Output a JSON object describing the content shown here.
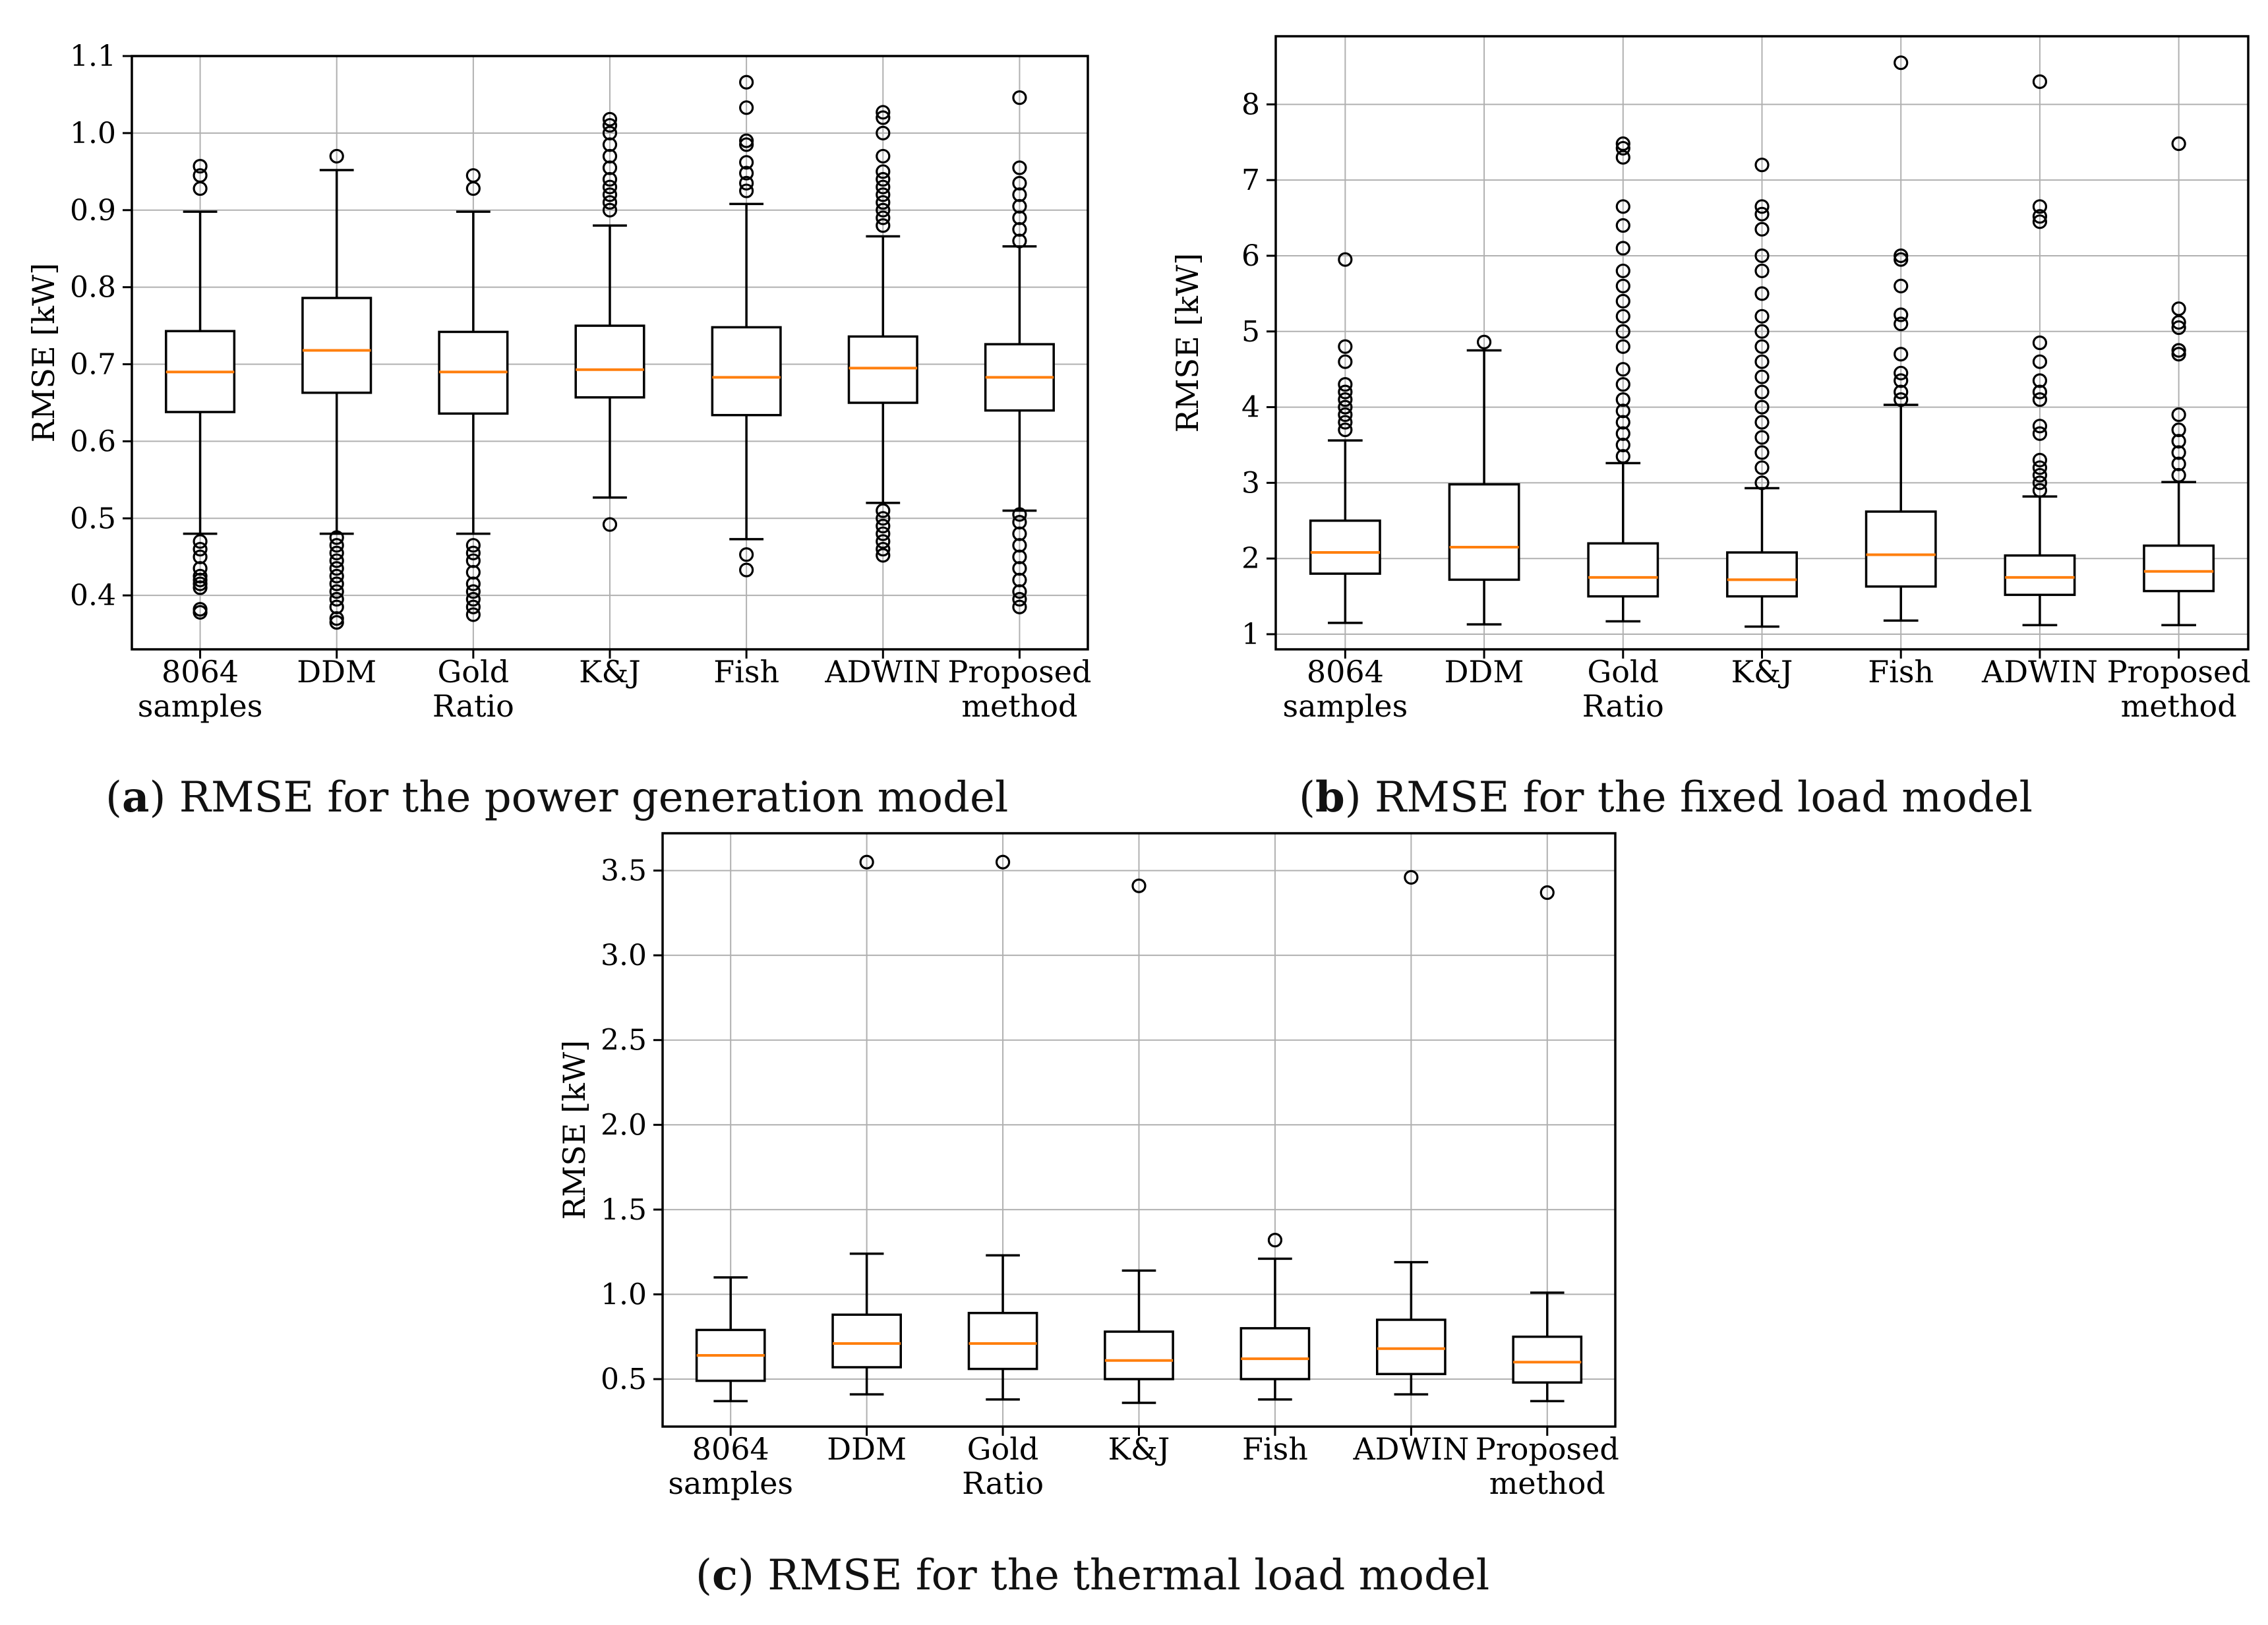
{
  "chart_data": [
    {
      "type": "box",
      "id": "a",
      "caption_letter": "a",
      "caption_text": "RMSE for the power generation model",
      "ylabel": "RMSE [kW]",
      "ylim": [
        0.33,
        1.1
      ],
      "yticks": [
        0.4,
        0.5,
        0.6,
        0.7,
        0.8,
        0.9,
        1.0,
        1.1
      ],
      "ytick_labels": [
        "0.4",
        "0.5",
        "0.6",
        "0.7",
        "0.8",
        "0.9",
        "1.0",
        "1.1"
      ],
      "categories": [
        [
          "8064",
          "samples"
        ],
        [
          "DDM"
        ],
        [
          "Gold",
          "Ratio"
        ],
        [
          "K&J"
        ],
        [
          "Fish"
        ],
        [
          "ADWIN"
        ],
        [
          "Proposed",
          "method"
        ]
      ],
      "boxes": [
        {
          "whislo": 0.48,
          "q1": 0.638,
          "med": 0.69,
          "q3": 0.743,
          "whishi": 0.898,
          "fliers": [
            0.928,
            0.945,
            0.957,
            0.378,
            0.382,
            0.41,
            0.415,
            0.42,
            0.425,
            0.435,
            0.45,
            0.46,
            0.47
          ]
        },
        {
          "whislo": 0.48,
          "q1": 0.663,
          "med": 0.718,
          "q3": 0.786,
          "whishi": 0.952,
          "fliers": [
            0.97,
            0.365,
            0.37,
            0.385,
            0.395,
            0.405,
            0.415,
            0.425,
            0.435,
            0.445,
            0.455,
            0.465,
            0.475
          ]
        },
        {
          "whislo": 0.48,
          "q1": 0.636,
          "med": 0.69,
          "q3": 0.742,
          "whishi": 0.898,
          "fliers": [
            0.928,
            0.945,
            0.375,
            0.385,
            0.395,
            0.405,
            0.415,
            0.43,
            0.445,
            0.455,
            0.465
          ]
        },
        {
          "whislo": 0.527,
          "q1": 0.657,
          "med": 0.693,
          "q3": 0.75,
          "whishi": 0.88,
          "fliers": [
            0.492,
            0.9,
            0.91,
            0.92,
            0.93,
            0.94,
            0.955,
            0.97,
            0.985,
            1.0,
            1.01,
            1.018
          ]
        },
        {
          "whislo": 0.473,
          "q1": 0.634,
          "med": 0.683,
          "q3": 0.748,
          "whishi": 0.908,
          "fliers": [
            0.433,
            0.453,
            0.925,
            0.935,
            0.948,
            0.962,
            0.985,
            0.99,
            1.033,
            1.066
          ]
        },
        {
          "whislo": 0.52,
          "q1": 0.65,
          "med": 0.695,
          "q3": 0.736,
          "whishi": 0.866,
          "fliers": [
            0.452,
            0.46,
            0.47,
            0.48,
            0.49,
            0.5,
            0.51,
            0.88,
            0.89,
            0.9,
            0.91,
            0.92,
            0.93,
            0.94,
            0.95,
            0.97,
            1.0,
            1.02,
            1.027
          ]
        },
        {
          "whislo": 0.51,
          "q1": 0.64,
          "med": 0.683,
          "q3": 0.726,
          "whishi": 0.853,
          "fliers": [
            0.385,
            0.395,
            0.405,
            0.42,
            0.435,
            0.45,
            0.465,
            0.48,
            0.495,
            0.505,
            0.86,
            0.875,
            0.89,
            0.905,
            0.92,
            0.935,
            0.955,
            1.046
          ]
        }
      ]
    },
    {
      "type": "box",
      "id": "b",
      "caption_letter": "b",
      "caption_text": "RMSE for the fixed load model",
      "ylabel": "RMSE [kW]",
      "ylim": [
        0.8,
        8.9
      ],
      "yticks": [
        1,
        2,
        3,
        4,
        5,
        6,
        7,
        8
      ],
      "ytick_labels": [
        "1",
        "2",
        "3",
        "4",
        "5",
        "6",
        "7",
        "8"
      ],
      "categories": [
        [
          "8064",
          "samples"
        ],
        [
          "DDM"
        ],
        [
          "Gold",
          "Ratio"
        ],
        [
          "K&J"
        ],
        [
          "Fish"
        ],
        [
          "ADWIN"
        ],
        [
          "Proposed",
          "method"
        ]
      ],
      "boxes": [
        {
          "whislo": 1.15,
          "q1": 1.8,
          "med": 2.08,
          "q3": 2.5,
          "whishi": 3.56,
          "fliers": [
            3.7,
            3.8,
            3.9,
            4.0,
            4.1,
            4.2,
            4.3,
            4.6,
            4.8,
            5.95
          ]
        },
        {
          "whislo": 1.13,
          "q1": 1.72,
          "med": 2.15,
          "q3": 2.98,
          "whishi": 4.75,
          "fliers": [
            4.86
          ]
        },
        {
          "whislo": 1.17,
          "q1": 1.5,
          "med": 1.75,
          "q3": 2.2,
          "whishi": 3.26,
          "fliers": [
            3.35,
            3.5,
            3.65,
            3.8,
            3.95,
            4.1,
            4.3,
            4.5,
            4.8,
            5.0,
            5.2,
            5.4,
            5.6,
            5.8,
            6.1,
            6.4,
            6.65,
            7.3,
            7.42,
            7.48
          ]
        },
        {
          "whislo": 1.1,
          "q1": 1.5,
          "med": 1.72,
          "q3": 2.08,
          "whishi": 2.93,
          "fliers": [
            3.0,
            3.2,
            3.4,
            3.6,
            3.8,
            4.0,
            4.2,
            4.4,
            4.6,
            4.8,
            5.0,
            5.2,
            5.5,
            5.8,
            6.0,
            6.35,
            6.55,
            6.65,
            7.2
          ]
        },
        {
          "whislo": 1.18,
          "q1": 1.63,
          "med": 2.05,
          "q3": 2.62,
          "whishi": 4.03,
          "fliers": [
            4.1,
            4.2,
            4.35,
            4.45,
            4.7,
            5.1,
            5.22,
            5.6,
            5.95,
            6.0,
            8.55
          ]
        },
        {
          "whislo": 1.12,
          "q1": 1.52,
          "med": 1.75,
          "q3": 2.04,
          "whishi": 2.82,
          "fliers": [
            2.9,
            3.0,
            3.1,
            3.2,
            3.3,
            3.65,
            3.75,
            4.1,
            4.2,
            4.35,
            4.6,
            4.85,
            6.45,
            6.52,
            6.65,
            8.3
          ]
        },
        {
          "whislo": 1.12,
          "q1": 1.57,
          "med": 1.83,
          "q3": 2.17,
          "whishi": 3.01,
          "fliers": [
            3.1,
            3.25,
            3.4,
            3.55,
            3.7,
            3.9,
            4.7,
            4.75,
            5.05,
            5.12,
            5.3,
            7.48
          ]
        }
      ]
    },
    {
      "type": "box",
      "id": "c",
      "caption_letter": "c",
      "caption_text": "RMSE for the thermal load model",
      "ylabel": "RMSE [kW]",
      "ylim": [
        0.22,
        3.72
      ],
      "yticks": [
        0.5,
        1.0,
        1.5,
        2.0,
        2.5,
        3.0,
        3.5
      ],
      "ytick_labels": [
        "0.5",
        "1.0",
        "1.5",
        "2.0",
        "2.5",
        "3.0",
        "3.5"
      ],
      "categories": [
        [
          "8064",
          "samples"
        ],
        [
          "DDM"
        ],
        [
          "Gold",
          "Ratio"
        ],
        [
          "K&J"
        ],
        [
          "Fish"
        ],
        [
          "ADWIN"
        ],
        [
          "Proposed",
          "method"
        ]
      ],
      "boxes": [
        {
          "whislo": 0.37,
          "q1": 0.49,
          "med": 0.64,
          "q3": 0.79,
          "whishi": 1.1,
          "fliers": []
        },
        {
          "whislo": 0.41,
          "q1": 0.57,
          "med": 0.71,
          "q3": 0.88,
          "whishi": 1.24,
          "fliers": [
            3.55
          ]
        },
        {
          "whislo": 0.38,
          "q1": 0.56,
          "med": 0.71,
          "q3": 0.89,
          "whishi": 1.23,
          "fliers": [
            3.55
          ]
        },
        {
          "whislo": 0.36,
          "q1": 0.5,
          "med": 0.61,
          "q3": 0.78,
          "whishi": 1.14,
          "fliers": [
            3.41
          ]
        },
        {
          "whislo": 0.38,
          "q1": 0.5,
          "med": 0.62,
          "q3": 0.8,
          "whishi": 1.21,
          "fliers": [
            1.32
          ]
        },
        {
          "whislo": 0.41,
          "q1": 0.53,
          "med": 0.68,
          "q3": 0.85,
          "whishi": 1.19,
          "fliers": [
            3.46
          ]
        },
        {
          "whislo": 0.37,
          "q1": 0.48,
          "med": 0.6,
          "q3": 0.75,
          "whishi": 1.01,
          "fliers": [
            3.37
          ]
        }
      ]
    }
  ]
}
